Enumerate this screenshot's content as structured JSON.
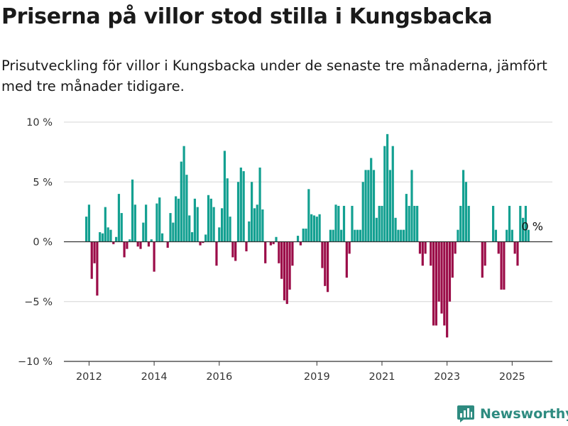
{
  "title": "Priserna på villor stod stilla i Kungsbacka",
  "subtitle": "Prisutveckling för villor i Kungsbacka under de senaste tre månaderna, jämfört med tre månader tidigare.",
  "brand": {
    "name": "Newsworthy"
  },
  "colors": {
    "positive": "#13a091",
    "negative": "#9b0c48",
    "grid": "#d6d6d6",
    "zero_line": "#333333"
  },
  "chart_data": {
    "type": "bar",
    "ylim": [
      -10,
      10
    ],
    "y_ticks": [
      {
        "value": 10,
        "label": "10 %"
      },
      {
        "value": 5,
        "label": "5 %"
      },
      {
        "value": 0,
        "label": "0 %"
      },
      {
        "value": -5,
        "label": "−5 %"
      },
      {
        "value": -10,
        "label": "−10 %"
      }
    ],
    "x_ticks": [
      {
        "year": 2012,
        "label": "2012"
      },
      {
        "year": 2014,
        "label": "2014"
      },
      {
        "year": 2016,
        "label": "2016"
      },
      {
        "year": 2019,
        "label": "2019"
      },
      {
        "year": 2021,
        "label": "2021"
      },
      {
        "year": 2023,
        "label": "2023"
      },
      {
        "year": 2025,
        "label": "2025"
      }
    ],
    "end_label": "0 %",
    "start_month": "2011-12",
    "values": [
      2.1,
      3.1,
      -3.1,
      -1.8,
      -4.5,
      0.8,
      0.7,
      2.9,
      1.2,
      1.0,
      -0.2,
      0.4,
      4.0,
      2.4,
      -1.3,
      -0.6,
      0.2,
      5.2,
      3.1,
      -0.4,
      -0.6,
      1.6,
      3.1,
      -0.4,
      0.2,
      -2.5,
      3.2,
      3.7,
      0.7,
      0.0,
      -0.5,
      2.4,
      1.6,
      3.8,
      3.6,
      6.7,
      8.0,
      5.6,
      2.2,
      0.8,
      3.6,
      2.9,
      -0.3,
      -0.1,
      0.6,
      3.9,
      3.6,
      2.9,
      -2.0,
      1.2,
      2.8,
      7.6,
      5.3,
      2.1,
      -1.3,
      -1.6,
      5.0,
      6.2,
      5.9,
      -0.8,
      1.7,
      5.0,
      2.8,
      3.1,
      6.2,
      2.7,
      -1.8,
      0.0,
      -0.3,
      -0.2,
      0.4,
      -1.8,
      -3.1,
      -4.9,
      -5.2,
      -4.0,
      -2.0,
      0.0,
      0.5,
      -0.3,
      1.1,
      1.1,
      4.4,
      2.3,
      2.2,
      2.1,
      2.3,
      -2.2,
      -3.7,
      -4.2,
      1.0,
      1.0,
      3.1,
      3.0,
      1.0,
      3.0,
      -3.0,
      -1.0,
      3.0,
      1.0,
      1.0,
      1.0,
      5.0,
      6.0,
      6.0,
      7.0,
      6.0,
      2.0,
      3.0,
      3.0,
      8.0,
      9.0,
      6.0,
      8.0,
      2.0,
      1.0,
      1.0,
      1.0,
      4.0,
      3.0,
      6.0,
      3.0,
      3.0,
      -1.0,
      -2.0,
      -1.0,
      0.0,
      -2.0,
      -7.0,
      -7.0,
      -5.0,
      -6.0,
      -7.0,
      -8.0,
      -5.0,
      -3.0,
      -1.0,
      1.0,
      3.0,
      6.0,
      5.0,
      3.0,
      0.0,
      0.0,
      0.0,
      0.0,
      -3.0,
      -2.0,
      0.0,
      0.0,
      3.0,
      1.0,
      -1.0,
      -4.0,
      -4.0,
      1.0,
      3.0,
      1.0,
      -1.0,
      -2.0,
      3.0,
      2.0,
      3.0,
      1.0,
      0.0
    ]
  }
}
